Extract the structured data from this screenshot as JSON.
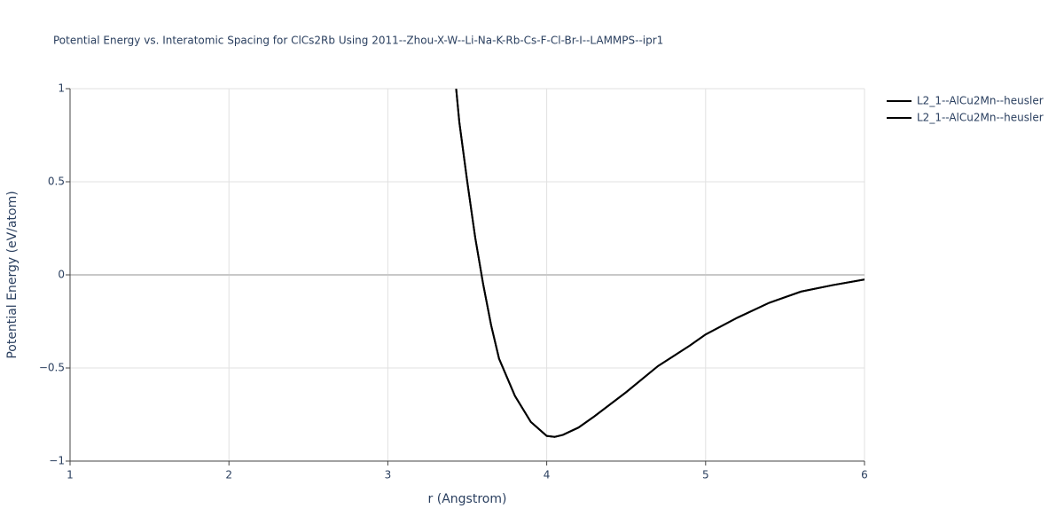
{
  "chart_data": {
    "type": "line",
    "title": "Potential Energy vs. Interatomic Spacing for ClCs2Rb Using 2011--Zhou-X-W--Li-Na-K-Rb-Cs-F-Cl-Br-I--LAMMPS--ipr1",
    "x_label": "r (Angstrom)",
    "y_label": "Potential Energy (eV/atom)",
    "xlim": [
      1,
      6
    ],
    "ylim": [
      -1,
      1
    ],
    "xticks": [
      1,
      2,
      3,
      4,
      5,
      6
    ],
    "yticks": [
      {
        "value": -1,
        "label": "−1"
      },
      {
        "value": -0.5,
        "label": "−0.5"
      },
      0,
      0.5,
      1
    ],
    "grid": true,
    "legend": "top-right",
    "x": [
      3.43,
      3.45,
      3.5,
      3.55,
      3.6,
      3.65,
      3.7,
      3.8,
      3.9,
      4.0,
      4.05,
      4.1,
      4.2,
      4.3,
      4.5,
      4.7,
      4.9,
      5.0,
      5.2,
      5.4,
      5.6,
      5.8,
      6.0
    ],
    "series": [
      {
        "name": "L2_1--AlCu2Mn--heusler",
        "color": "#000000",
        "values": [
          1.0,
          0.82,
          0.5,
          0.2,
          -0.05,
          -0.27,
          -0.45,
          -0.65,
          -0.79,
          -0.865,
          -0.87,
          -0.86,
          -0.82,
          -0.76,
          -0.63,
          -0.49,
          -0.38,
          -0.32,
          -0.23,
          -0.15,
          -0.09,
          -0.055,
          -0.025
        ]
      },
      {
        "name": "L2_1--AlCu2Mn--heusler",
        "color": "#000000",
        "values": [
          1.0,
          0.82,
          0.5,
          0.2,
          -0.05,
          -0.27,
          -0.45,
          -0.65,
          -0.79,
          -0.865,
          -0.87,
          -0.86,
          -0.82,
          -0.76,
          -0.63,
          -0.49,
          -0.38,
          -0.32,
          -0.23,
          -0.15,
          -0.09,
          -0.055,
          -0.025
        ]
      }
    ]
  }
}
